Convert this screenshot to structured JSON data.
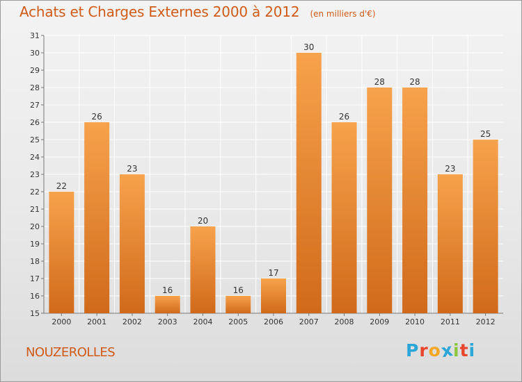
{
  "header": {
    "title": "Achats et Charges Externes 2000 à 2012",
    "subtitle": "(en milliers d'€)"
  },
  "footer": {
    "commune": "NOUZEROLLES",
    "brand_letters": [
      "P",
      "r",
      "o",
      "x",
      "i",
      "t",
      "i"
    ],
    "brand_colors": [
      "#2aa6d8",
      "#e8452c",
      "#f5a623",
      "#2aa6d8",
      "#8cc63f",
      "#e8452c",
      "#2aa6d8"
    ]
  },
  "chart_data": {
    "type": "bar",
    "title": "Achats et Charges Externes 2000 à 2012",
    "subtitle": "(en milliers d'€)",
    "categories": [
      "2000",
      "2001",
      "2002",
      "2003",
      "2004",
      "2005",
      "2006",
      "2007",
      "2008",
      "2009",
      "2010",
      "2011",
      "2012"
    ],
    "values": [
      22,
      26,
      23,
      16,
      20,
      16,
      17,
      30,
      26,
      28,
      28,
      23,
      25
    ],
    "data_labels": [
      "22",
      "26",
      "23",
      "16",
      "20",
      "16",
      "17",
      "30",
      "26",
      "28",
      "28",
      "23",
      "25"
    ],
    "yticks": [
      "15",
      "16",
      "17",
      "18",
      "19",
      "20",
      "21",
      "22",
      "23",
      "24",
      "25",
      "26",
      "27",
      "28",
      "29",
      "30",
      "31"
    ],
    "ylim": [
      15,
      31
    ],
    "xlabel": "",
    "ylabel": "",
    "grid": true,
    "colors": {
      "bar_light": "#f7a24c",
      "bar_dark": "#d06a1a",
      "text": "#333333",
      "grid": "#ffffff"
    }
  }
}
